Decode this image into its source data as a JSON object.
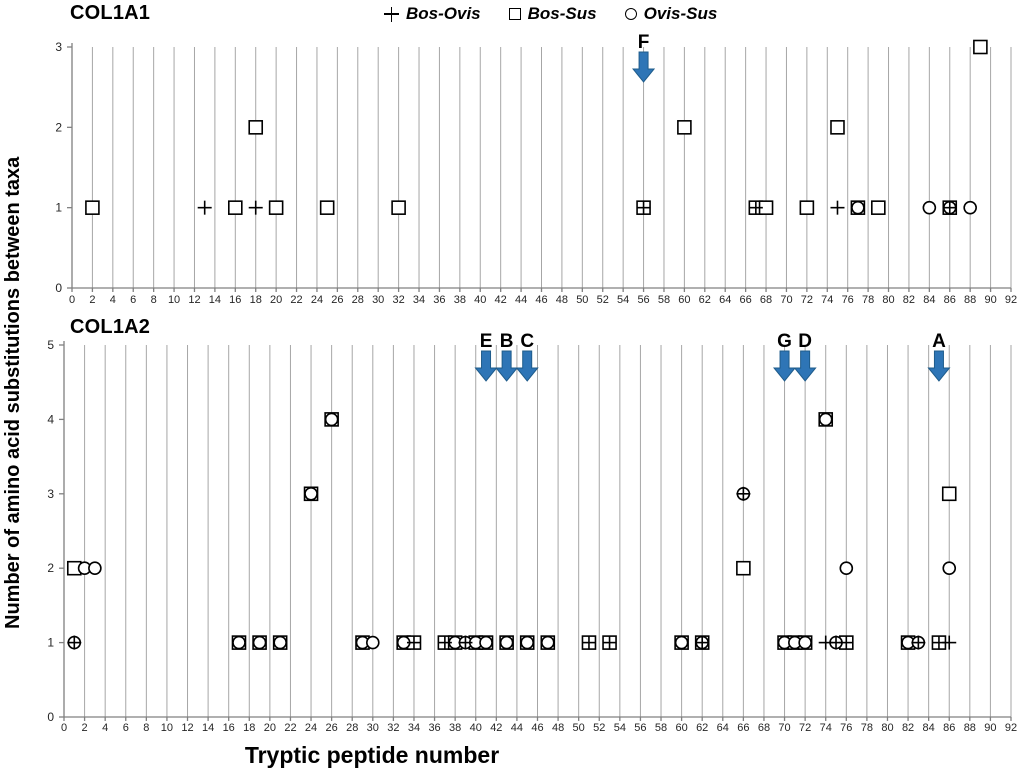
{
  "legend": {
    "items": [
      {
        "marker": "plus",
        "label": "Bos-Ovis"
      },
      {
        "marker": "square",
        "label": "Bos-Sus"
      },
      {
        "marker": "circle",
        "label": "Ovis-Sus"
      }
    ]
  },
  "axis": {
    "x_label": "Tryptic peptide number",
    "y_label": "Number of amino acid substitutions between taxa"
  },
  "colors": {
    "arrow_fill": "#2E75B6",
    "arrow_stroke": "#1F5C8B",
    "grid": "#A6A6A6",
    "axis": "#808080",
    "marker": "#000000",
    "tick_text": "#262626"
  },
  "chart_data": [
    {
      "type": "scatter",
      "title": "COL1A1",
      "xlim": [
        0,
        92
      ],
      "ylim": [
        0,
        3
      ],
      "x_tick_step": 2,
      "y_tick_step": 1,
      "grid": "vertical",
      "legend_position": "top",
      "series": [
        {
          "name": "Bos-Ovis",
          "marker": "plus",
          "points": [
            [
              13,
              1
            ],
            [
              18,
              1
            ],
            [
              56,
              1
            ],
            [
              67,
              1
            ],
            [
              75,
              1
            ],
            [
              86,
              1
            ]
          ]
        },
        {
          "name": "Bos-Sus",
          "marker": "square",
          "points": [
            [
              2,
              1
            ],
            [
              16,
              1
            ],
            [
              18,
              2
            ],
            [
              20,
              1
            ],
            [
              25,
              1
            ],
            [
              32,
              1
            ],
            [
              56,
              1
            ],
            [
              60,
              2
            ],
            [
              67,
              1
            ],
            [
              68,
              1
            ],
            [
              72,
              1
            ],
            [
              75,
              2
            ],
            [
              77,
              1
            ],
            [
              79,
              1
            ],
            [
              86,
              1
            ],
            [
              89,
              3
            ]
          ]
        },
        {
          "name": "Ovis-Sus",
          "marker": "circle",
          "points": [
            [
              77,
              1
            ],
            [
              84,
              1
            ],
            [
              86,
              1
            ],
            [
              88,
              1
            ]
          ]
        }
      ],
      "annotations": [
        {
          "label": "F",
          "x": 56
        }
      ]
    },
    {
      "type": "scatter",
      "title": "COL1A2",
      "xlim": [
        0,
        92
      ],
      "ylim": [
        0,
        5
      ],
      "x_tick_step": 2,
      "y_tick_step": 1,
      "grid": "vertical",
      "legend_position": "top",
      "series": [
        {
          "name": "Bos-Ovis",
          "marker": "plus",
          "points": [
            [
              1,
              1
            ],
            [
              34,
              1
            ],
            [
              37,
              1
            ],
            [
              39,
              1
            ],
            [
              51,
              1
            ],
            [
              53,
              1
            ],
            [
              62,
              1
            ],
            [
              66,
              3
            ],
            [
              74,
              1
            ],
            [
              75,
              1
            ],
            [
              76,
              1
            ],
            [
              83,
              1
            ],
            [
              85,
              1
            ],
            [
              86,
              1
            ]
          ]
        },
        {
          "name": "Bos-Sus",
          "marker": "square",
          "points": [
            [
              1,
              2
            ],
            [
              17,
              1
            ],
            [
              19,
              1
            ],
            [
              21,
              1
            ],
            [
              24,
              3
            ],
            [
              26,
              4
            ],
            [
              29,
              1
            ],
            [
              33,
              1
            ],
            [
              34,
              1
            ],
            [
              37,
              1
            ],
            [
              38,
              1
            ],
            [
              40,
              1
            ],
            [
              41,
              1
            ],
            [
              43,
              1
            ],
            [
              45,
              1
            ],
            [
              47,
              1
            ],
            [
              51,
              1
            ],
            [
              53,
              1
            ],
            [
              60,
              1
            ],
            [
              62,
              1
            ],
            [
              66,
              2
            ],
            [
              70,
              1
            ],
            [
              71,
              1
            ],
            [
              72,
              1
            ],
            [
              74,
              4
            ],
            [
              76,
              1
            ],
            [
              82,
              1
            ],
            [
              85,
              1
            ],
            [
              86,
              3
            ]
          ]
        },
        {
          "name": "Ovis-Sus",
          "marker": "circle",
          "points": [
            [
              1,
              1
            ],
            [
              2,
              2
            ],
            [
              3,
              2
            ],
            [
              17,
              1
            ],
            [
              19,
              1
            ],
            [
              21,
              1
            ],
            [
              24,
              3
            ],
            [
              26,
              4
            ],
            [
              29,
              1
            ],
            [
              30,
              1
            ],
            [
              33,
              1
            ],
            [
              38,
              1
            ],
            [
              39,
              1
            ],
            [
              40,
              1
            ],
            [
              41,
              1
            ],
            [
              43,
              1
            ],
            [
              45,
              1
            ],
            [
              47,
              1
            ],
            [
              60,
              1
            ],
            [
              62,
              1
            ],
            [
              66,
              3
            ],
            [
              70,
              1
            ],
            [
              71,
              1
            ],
            [
              72,
              1
            ],
            [
              74,
              4
            ],
            [
              75,
              1
            ],
            [
              76,
              2
            ],
            [
              82,
              1
            ],
            [
              83,
              1
            ],
            [
              86,
              2
            ]
          ]
        }
      ],
      "annotations": [
        {
          "label": "E",
          "x": 41
        },
        {
          "label": "B",
          "x": 43
        },
        {
          "label": "C",
          "x": 45
        },
        {
          "label": "G",
          "x": 70
        },
        {
          "label": "D",
          "x": 72
        },
        {
          "label": "A",
          "x": 85
        }
      ]
    }
  ]
}
